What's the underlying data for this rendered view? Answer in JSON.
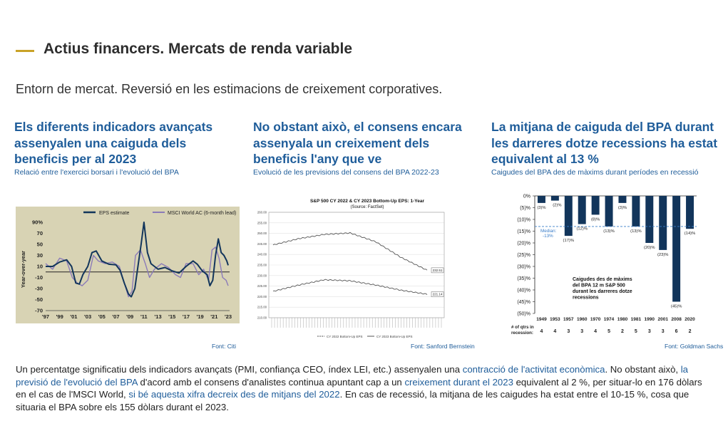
{
  "header": {
    "title": "Actius financers. Mercats de renda variable",
    "subtitle": "Entorn de mercat. Reversió en les estimacions de creixement corporatives."
  },
  "columns": [
    {
      "heading": "Els diferents indicadors avançats assenyalen una caiguda dels beneficis per al 2023",
      "subheading": "Relació entre l'exercici borsari i l'evolució del BPA",
      "source": "Font: Citi"
    },
    {
      "heading": "No obstant això, el consens encara assenyala un creixement dels beneficis l'any que ve",
      "subheading": "Evolució de les previsions del consens del BPA 2022-23",
      "source": "Font: Sanford Bernstein"
    },
    {
      "heading": "La mitjana de caiguda del BPA durant les darreres dotze recessions ha estat equivalent al 13 %",
      "subheading": "Caigudes del BPA des de màxims durant períodes en recessió",
      "source": "Font: Goldman Sachs"
    }
  ],
  "paragraph": {
    "p1": "Un percentatge significatiu dels indicadors avançats (PMI, confiança CEO, índex LEI, etc.) assenyalen una ",
    "h1": "contracció de l'activitat econòmica",
    "p2": ". No obstant això, ",
    "h2": "la previsió de l'evolució del BPA",
    "p3": " d'acord amb el consens d'analistes continua apuntant cap a un ",
    "h3": "creixement durant el 2023",
    "p4": " equivalent al 2 %, per situar-lo en 176 dòlars en el cas de l'MSCI World, ",
    "h4": "si bé aquesta xifra decreix des de mitjans del 2022",
    "p5": ". En cas de recessió, la mitjana de les caigudes ha estat entre el 10-15 %, cosa que situaria el BPA sobre els 155 dòlars durant el 2023."
  },
  "colors": {
    "accent": "#c9a227",
    "link": "#1f5d9a",
    "navy": "#12355b",
    "purple": "#8b7bb8",
    "khaki": "#d8d3b4"
  },
  "chart_data": [
    {
      "type": "line",
      "ylabel": "Year-over-year",
      "ylim": [
        -70,
        90
      ],
      "yticks": [
        "90%",
        "70",
        "50",
        "30",
        "10",
        "-10",
        "-30",
        "-50",
        "-70"
      ],
      "xticks": [
        "'97",
        "'99",
        "'01",
        "'03",
        "'05",
        "'07",
        "'09",
        "'11",
        "'13",
        "'15",
        "'17",
        "'19",
        "'21",
        "'23"
      ],
      "series": [
        {
          "name": "EPS estimate",
          "color": "#12355b",
          "x": [
            1997,
            1998,
            1999,
            2000,
            2000.7,
            2001.3,
            2001.8,
            2002.3,
            2003,
            2003.6,
            2004.2,
            2005,
            2006,
            2007,
            2007.6,
            2008.2,
            2008.8,
            2009.2,
            2009.7,
            2010.2,
            2010.6,
            2011,
            2011.5,
            2012,
            2013,
            2014,
            2015,
            2016,
            2017,
            2018,
            2018.6,
            2019.3,
            2020,
            2020.4,
            2020.8,
            2021.2,
            2021.6,
            2022,
            2022.4,
            2022.8,
            2023
          ],
          "y": [
            10,
            10,
            18,
            22,
            10,
            -20,
            -22,
            -5,
            10,
            35,
            38,
            20,
            14,
            13,
            3,
            -20,
            -40,
            -45,
            -30,
            15,
            50,
            90,
            35,
            15,
            5,
            8,
            2,
            -2,
            10,
            20,
            14,
            2,
            -5,
            -25,
            -15,
            30,
            60,
            35,
            30,
            20,
            12
          ]
        },
        {
          "name": "MSCI World AC (6-month lead)",
          "color": "#8b7bb8",
          "x": [
            1997,
            1998,
            1999,
            2000,
            2000.8,
            2001.5,
            2002.2,
            2003,
            2003.8,
            2004.5,
            2005.5,
            2006.5,
            2007.5,
            2008.2,
            2008.8,
            2009.3,
            2009.8,
            2010.5,
            2011.2,
            2011.8,
            2012.5,
            2013.5,
            2014.5,
            2015.5,
            2016.2,
            2017,
            2018,
            2018.8,
            2019.5,
            2020.2,
            2020.7,
            2021.2,
            2021.7,
            2022.2,
            2022.7,
            2023
          ],
          "y": [
            15,
            5,
            25,
            20,
            -10,
            -20,
            -25,
            -15,
            30,
            20,
            15,
            18,
            10,
            -20,
            -45,
            -35,
            30,
            40,
            15,
            -10,
            5,
            15,
            8,
            -5,
            -10,
            15,
            15,
            -5,
            5,
            -15,
            40,
            45,
            25,
            -10,
            -15,
            -25
          ]
        }
      ]
    },
    {
      "type": "line",
      "title": "S&P 500 CY 2022 & CY 2023 Bottom-Up  EPS: 1-Year",
      "subtitle": "(Source: FactSet)",
      "ylim": [
        210,
        260
      ],
      "yticks": [
        "260.00",
        "255.00",
        "250.00",
        "245.00",
        "240.00",
        "235.00",
        "230.00",
        "225.00",
        "220.00",
        "215.00",
        "210.00"
      ],
      "x": [
        "Feb 2022",
        "Apr 2022",
        "Jun 2022",
        "Aug 2022",
        "Oct 2022",
        "Dec 2022",
        "Feb 2023"
      ],
      "series": [
        {
          "name": "CY 2023 Bottom-Up EPS",
          "color": "#555555",
          "end_label": "232.51",
          "values": [
            244.5,
            247.5,
            249.5,
            250.2,
            246,
            238.5,
            232.51
          ]
        },
        {
          "name": "CY 2022 Bottom-Up EPS",
          "color": "#555555",
          "end_label": "221.14",
          "values": [
            222.5,
            225.5,
            228,
            227.5,
            225.5,
            223,
            221.14
          ]
        }
      ]
    },
    {
      "type": "bar",
      "categories": [
        "1949",
        "1953",
        "1957",
        "1960",
        "1970",
        "1974",
        "1980",
        "1981",
        "1990",
        "2001",
        "2008",
        "2020"
      ],
      "values": [
        -3,
        -2,
        -17,
        -12,
        -8,
        -13,
        -3,
        -13,
        -20,
        -23,
        -45,
        -14
      ],
      "labels": [
        "(3)%",
        "(2)%",
        "(17)%",
        "(12)%",
        "(8)%",
        "(13)%",
        "(3)%",
        "(13)%",
        "(20)%",
        "(23)%",
        "(45)%",
        "(14)%"
      ],
      "qtrs_label": "# of qtrs in recession:",
      "qtrs": [
        "4",
        "4",
        "3",
        "3",
        "4",
        "5",
        "2",
        "5",
        "3",
        "3",
        "6",
        "2"
      ],
      "ylim": [
        -50,
        0
      ],
      "yticks": [
        "0%",
        "(5)%",
        "(10)%",
        "(15)%",
        "(20)%",
        "(25)%",
        "(30)%",
        "(35)%",
        "(40)%",
        "(45)%",
        "(50)%"
      ],
      "median": -13,
      "median_label_1": "Median:",
      "median_label_2": "-13%",
      "annotation": [
        "Caigudes des de màxims",
        "del BPA 12 m S&P 500",
        "durant les darreres dotze",
        "recessions"
      ],
      "color": "#12355b"
    }
  ]
}
